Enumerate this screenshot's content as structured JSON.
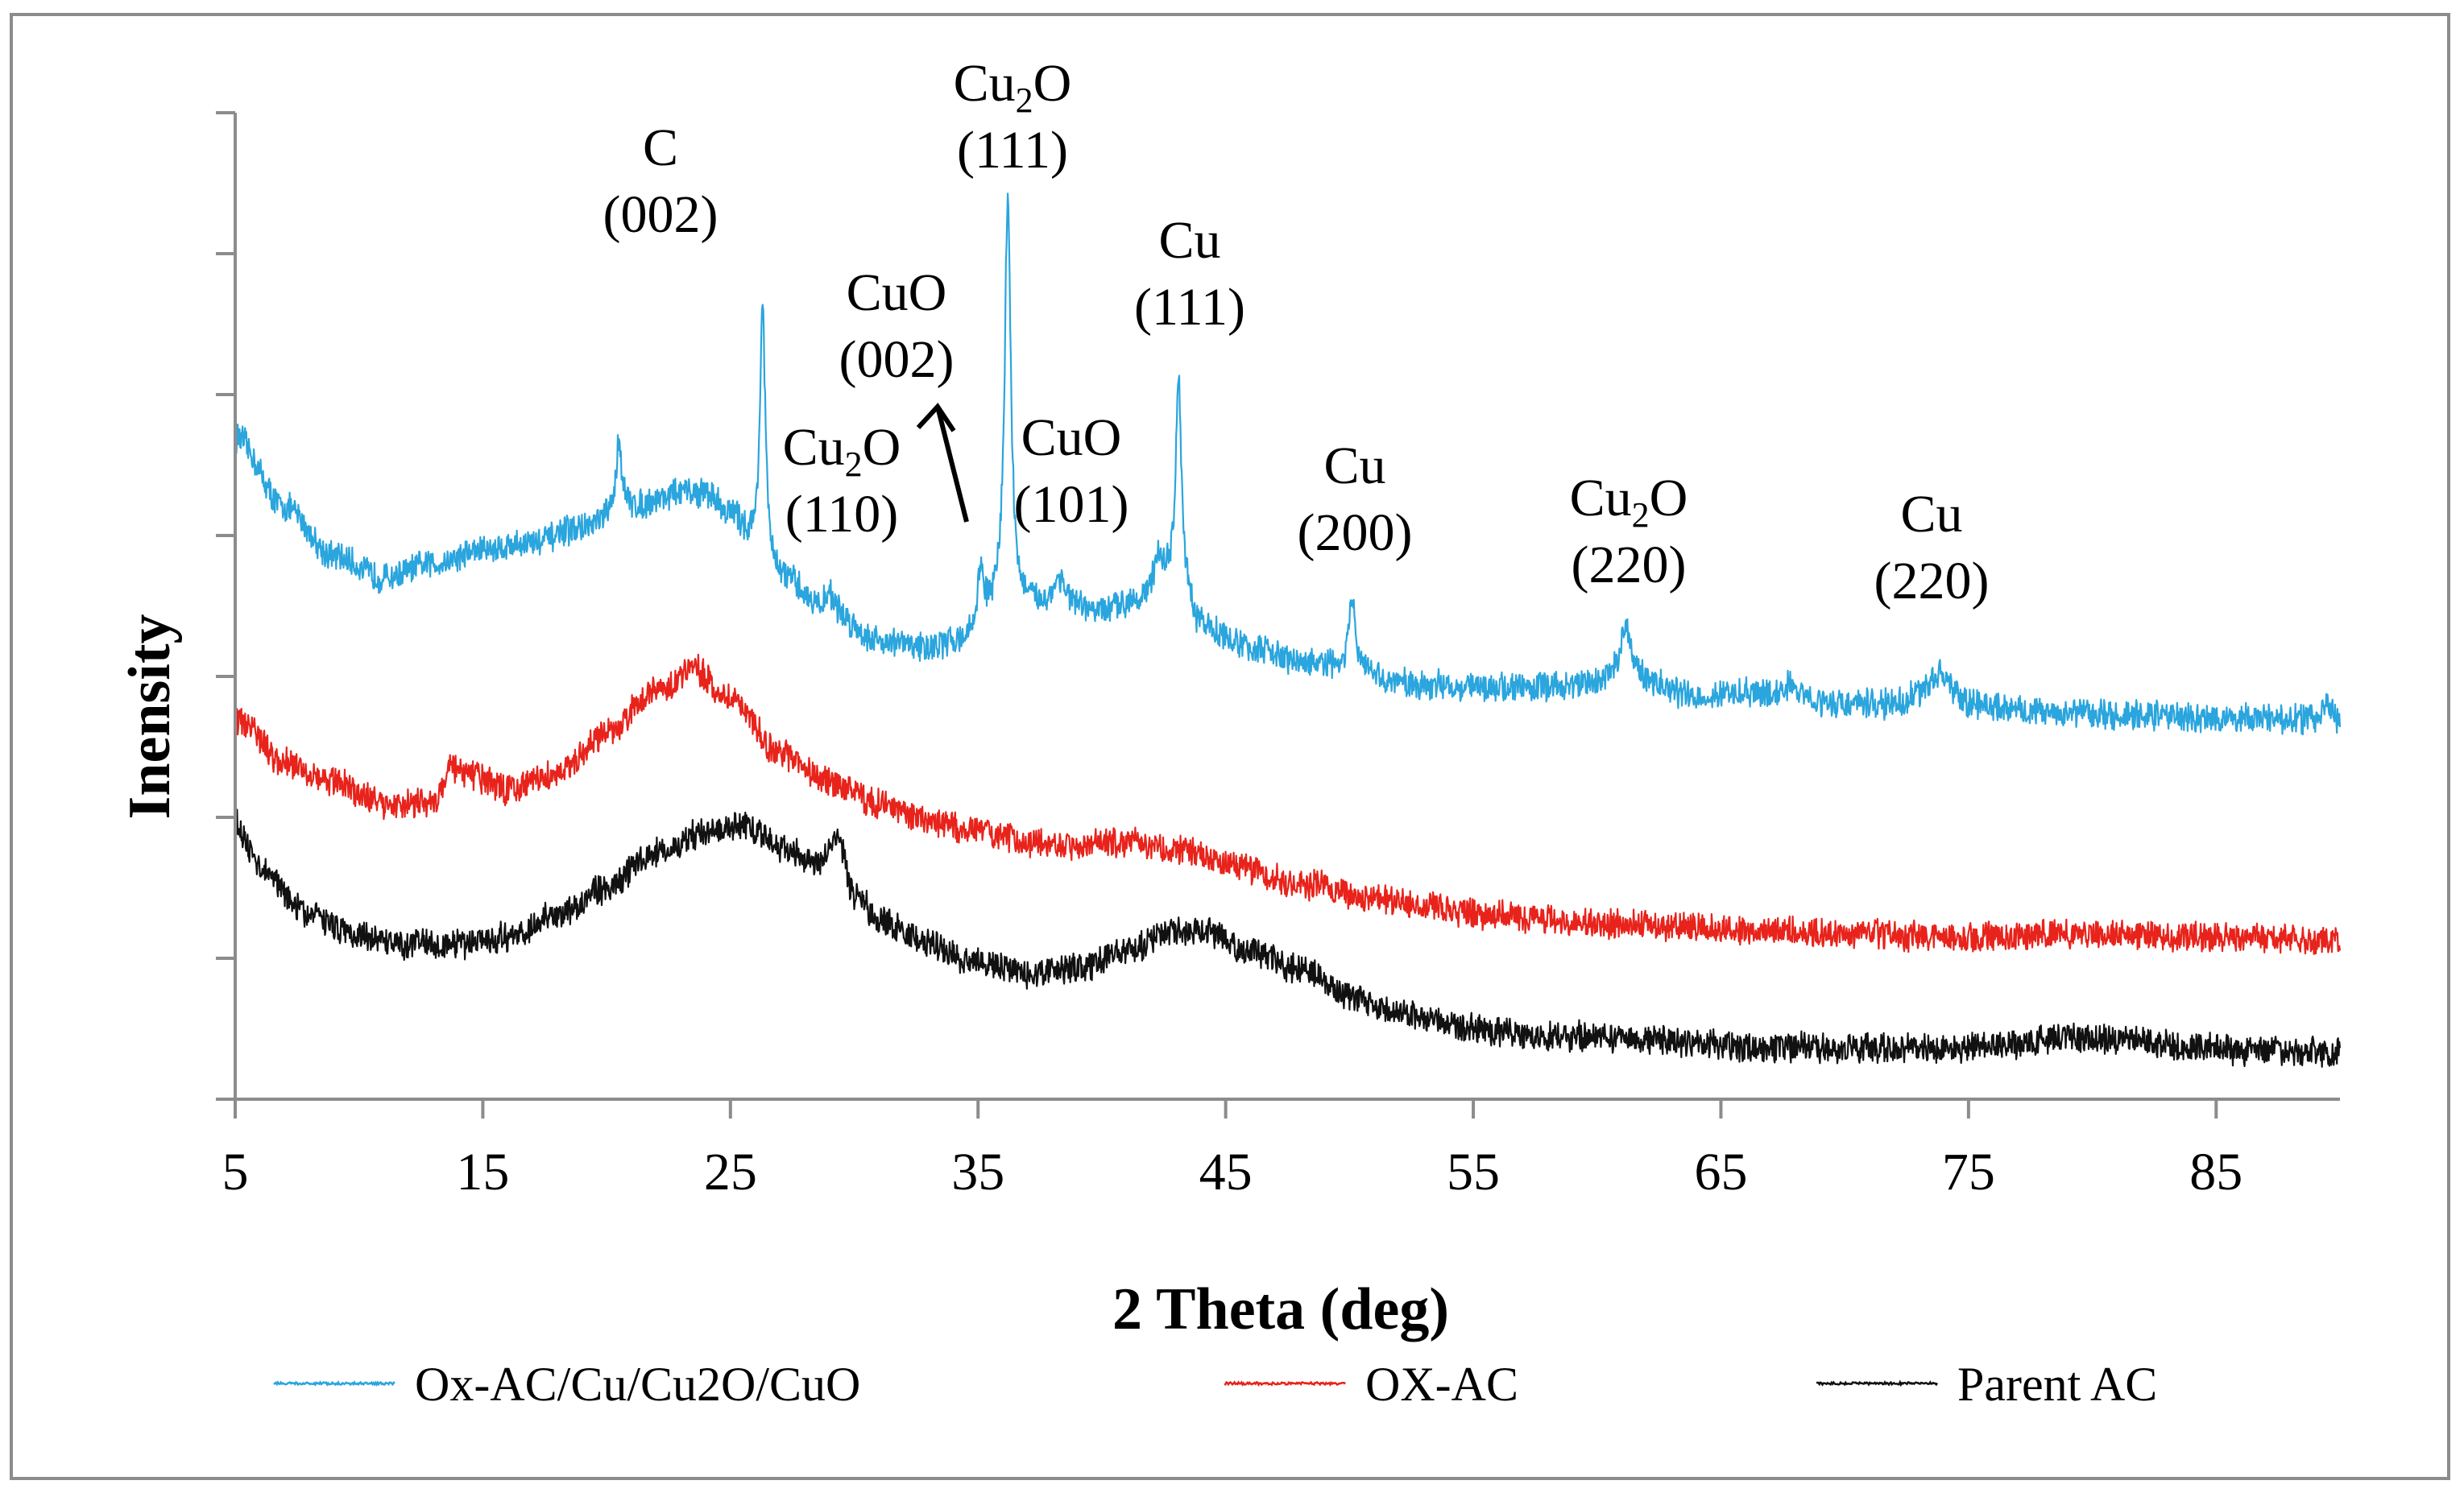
{
  "chart_data": {
    "type": "line",
    "title": "",
    "xlabel": "2 Theta (deg)",
    "ylabel": "Inensity",
    "xlim": [
      5,
      90
    ],
    "ylim": [
      0,
      14
    ],
    "x_ticks": [
      5,
      15,
      25,
      35,
      45,
      55,
      65,
      75,
      85
    ],
    "x_tick_labels": [
      "5",
      "15",
      "25",
      "35",
      "45",
      "55",
      "65",
      "75",
      "85"
    ],
    "y_ticks": [
      0,
      2,
      4,
      6,
      8,
      10,
      12,
      14
    ],
    "y_tick_labels_shown": false,
    "grid": false,
    "legend_position": "bottom",
    "series": [
      {
        "name": "Ox-AC/Cu/Cu2O/CuO",
        "color": "#2aa5dd",
        "baseline_points": [
          [
            5,
            9.4
          ],
          [
            7,
            8.4
          ],
          [
            9,
            7.7
          ],
          [
            11,
            7.4
          ],
          [
            13,
            7.6
          ],
          [
            15,
            7.8
          ],
          [
            17,
            7.9
          ],
          [
            19,
            8.1
          ],
          [
            21,
            8.4
          ],
          [
            23,
            8.6
          ],
          [
            24,
            8.6
          ],
          [
            25,
            8.3
          ],
          [
            26,
            7.9
          ],
          [
            27,
            7.4
          ],
          [
            29,
            6.9
          ],
          [
            31,
            6.5
          ],
          [
            33,
            6.4
          ],
          [
            34.5,
            6.5
          ],
          [
            36,
            7.0
          ],
          [
            38,
            7.0
          ],
          [
            40,
            6.9
          ],
          [
            41.5,
            7.1
          ],
          [
            43,
            7.4
          ],
          [
            44,
            6.7
          ],
          [
            46,
            6.4
          ],
          [
            48,
            6.2
          ],
          [
            50,
            6.1
          ],
          [
            52,
            5.9
          ],
          [
            55,
            5.85
          ],
          [
            58,
            5.85
          ],
          [
            60,
            5.9
          ],
          [
            61,
            6.1
          ],
          [
            62,
            5.9
          ],
          [
            64,
            5.7
          ],
          [
            66,
            5.75
          ],
          [
            68,
            5.7
          ],
          [
            70,
            5.6
          ],
          [
            72,
            5.6
          ],
          [
            73.5,
            5.8
          ],
          [
            75,
            5.6
          ],
          [
            78,
            5.5
          ],
          [
            82,
            5.45
          ],
          [
            86,
            5.4
          ],
          [
            89,
            5.4
          ],
          [
            89.5,
            5.6
          ],
          [
            90,
            5.4
          ]
        ],
        "peaks": [
          {
            "x": 20.5,
            "y": 9.4,
            "width": 0.25
          },
          {
            "x": 26.3,
            "y": 11.3,
            "width": 0.25
          },
          {
            "x": 29.0,
            "y": 7.2,
            "width": 0.4
          },
          {
            "x": 35.1,
            "y": 7.5,
            "width": 0.3
          },
          {
            "x": 36.2,
            "y": 12.8,
            "width": 0.3
          },
          {
            "x": 38.3,
            "y": 7.4,
            "width": 0.5
          },
          {
            "x": 42.3,
            "y": 7.7,
            "width": 0.4
          },
          {
            "x": 43.1,
            "y": 10.3,
            "width": 0.25
          },
          {
            "x": 50.1,
            "y": 7.1,
            "width": 0.3
          },
          {
            "x": 61.2,
            "y": 6.7,
            "width": 0.5
          },
          {
            "x": 67.8,
            "y": 5.9,
            "width": 0.5
          },
          {
            "x": 73.9,
            "y": 6.1,
            "width": 0.6
          }
        ]
      },
      {
        "name": "OX-AC",
        "color": "#e8231b",
        "baseline_points": [
          [
            5,
            5.4
          ],
          [
            7,
            4.8
          ],
          [
            9,
            4.5
          ],
          [
            11,
            4.2
          ],
          [
            13,
            4.2
          ],
          [
            13.7,
            4.7
          ],
          [
            14.5,
            4.6
          ],
          [
            16,
            4.4
          ],
          [
            18,
            4.6
          ],
          [
            20,
            5.2
          ],
          [
            22,
            5.8
          ],
          [
            23.5,
            6.1
          ],
          [
            25,
            5.7
          ],
          [
            27,
            4.9
          ],
          [
            29,
            4.5
          ],
          [
            31,
            4.2
          ],
          [
            33,
            3.95
          ],
          [
            35,
            3.8
          ],
          [
            37,
            3.65
          ],
          [
            39,
            3.6
          ],
          [
            41,
            3.65
          ],
          [
            43,
            3.55
          ],
          [
            45,
            3.35
          ],
          [
            48,
            3.05
          ],
          [
            52,
            2.8
          ],
          [
            56,
            2.6
          ],
          [
            60,
            2.5
          ],
          [
            65,
            2.4
          ],
          [
            70,
            2.35
          ],
          [
            75,
            2.3
          ],
          [
            80,
            2.35
          ],
          [
            85,
            2.3
          ],
          [
            90,
            2.25
          ]
        ],
        "peaks": []
      },
      {
        "name": "Parent AC",
        "color": "#111111",
        "baseline_points": [
          [
            5,
            3.9
          ],
          [
            6,
            3.3
          ],
          [
            8,
            2.6
          ],
          [
            10,
            2.3
          ],
          [
            12,
            2.2
          ],
          [
            14,
            2.2
          ],
          [
            16,
            2.3
          ],
          [
            18,
            2.6
          ],
          [
            20,
            3.0
          ],
          [
            22,
            3.5
          ],
          [
            24,
            3.8
          ],
          [
            25.5,
            3.9
          ],
          [
            27,
            3.6
          ],
          [
            28.5,
            3.3
          ],
          [
            29.3,
            3.7
          ],
          [
            30,
            2.9
          ],
          [
            31,
            2.55
          ],
          [
            33,
            2.2
          ],
          [
            35,
            1.95
          ],
          [
            37,
            1.8
          ],
          [
            39,
            1.85
          ],
          [
            41,
            2.1
          ],
          [
            43,
            2.4
          ],
          [
            44,
            2.4
          ],
          [
            46,
            2.1
          ],
          [
            48,
            1.85
          ],
          [
            50,
            1.45
          ],
          [
            52,
            1.2
          ],
          [
            55,
            1.0
          ],
          [
            58,
            0.9
          ],
          [
            62,
            0.85
          ],
          [
            66,
            0.75
          ],
          [
            70,
            0.72
          ],
          [
            74,
            0.72
          ],
          [
            77,
            0.78
          ],
          [
            79,
            0.88
          ],
          [
            81,
            0.85
          ],
          [
            84,
            0.75
          ],
          [
            87,
            0.68
          ],
          [
            90,
            0.65
          ]
        ],
        "peaks": []
      }
    ],
    "annotations": [
      {
        "main": "C",
        "paren": "(002)"
      },
      {
        "main": "Cu",
        "sub": "2",
        "tail": "O",
        "paren": "(111)"
      },
      {
        "main": "CuO",
        "paren": "(002)"
      },
      {
        "main": "Cu",
        "sub": "2",
        "tail": "O",
        "paren": "(110)"
      },
      {
        "main": "CuO",
        "paren": "(101)"
      },
      {
        "main": "Cu",
        "paren": "(111)"
      },
      {
        "main": "Cu",
        "paren": "(200)"
      },
      {
        "main": "Cu",
        "sub": "2",
        "tail": "O",
        "paren": "(220)"
      },
      {
        "main": "Cu",
        "paren": "(220)"
      }
    ],
    "arrow": {
      "from_x": 35.0,
      "from_y": 7.5,
      "to_x": 33.7,
      "to_y": 9.2,
      "label_index": 2
    }
  }
}
